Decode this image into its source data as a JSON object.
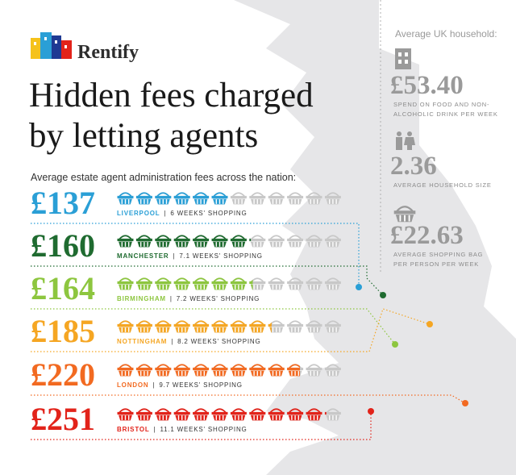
{
  "brand": "Rentify",
  "title": [
    "Hidden fees charged",
    "by letting agents"
  ],
  "subtitle": "Average estate agent administration fees across the nation:",
  "rows": [
    {
      "fee": "£137",
      "city": "LIVERPOOL",
      "weeks": 6,
      "weeks_label": "6 WEEKS' SHOPPING",
      "color": "#2a9fd6"
    },
    {
      "fee": "£160",
      "city": "MANCHESTER",
      "weeks": 7.1,
      "weeks_label": "7.1 WEEKS' SHOPPING",
      "color": "#1f6b30"
    },
    {
      "fee": "£164",
      "city": "BIRMINGHAM",
      "weeks": 7.2,
      "weeks_label": "7.2 WEEKS' SHOPPING",
      "color": "#8dc63f"
    },
    {
      "fee": "£185",
      "city": "NOTTINGHAM",
      "weeks": 8.2,
      "weeks_label": "8.2 WEEKS' SHOPPING",
      "color": "#f5a623"
    },
    {
      "fee": "£220",
      "city": "LONDON",
      "weeks": 9.7,
      "weeks_label": "9.7 WEEKS' SHOPPING",
      "color": "#f26a21"
    },
    {
      "fee": "£251",
      "city": "BRISTOL",
      "weeks": 11.1,
      "weeks_label": "11.1 WEEKS' SHOPPING",
      "color": "#e2231a"
    }
  ],
  "sidebar": {
    "heading": "Average UK household:",
    "stats": [
      {
        "value": "£53.40",
        "label": [
          "SPEND ON FOOD AND NON-",
          "ALCOHOLIC DRINK PER WEEK"
        ]
      },
      {
        "value": "2.36",
        "label": [
          "AVERAGE HOUSEHOLD SIZE"
        ]
      },
      {
        "value": "£22.63",
        "label": [
          "AVERAGE SHOPPING BAG",
          "PER PERSON PER WEEK"
        ]
      }
    ]
  }
}
